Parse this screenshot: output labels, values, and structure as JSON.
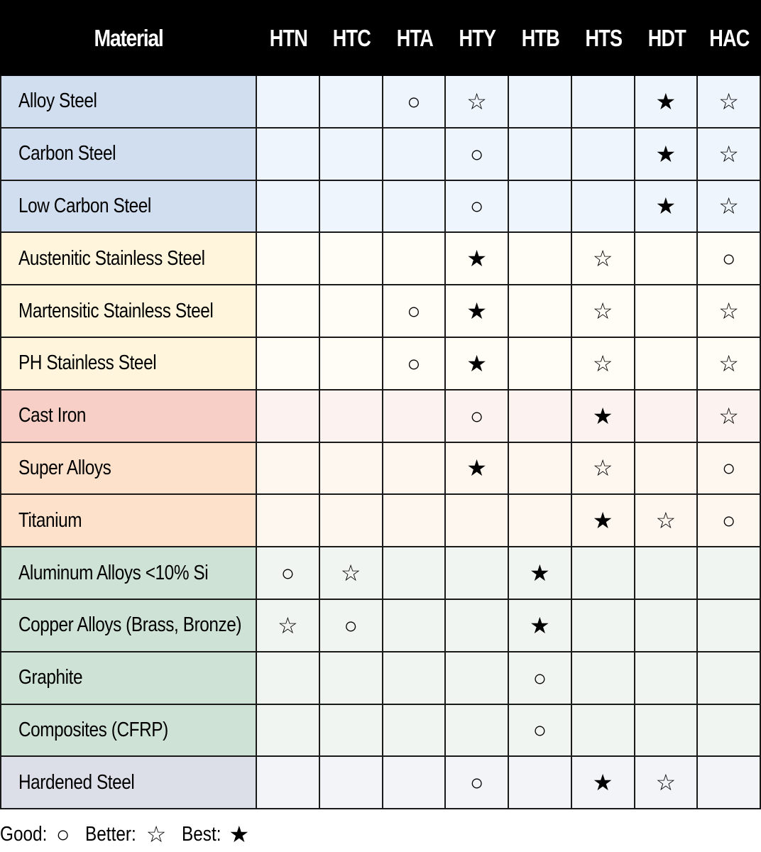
{
  "table": {
    "header": {
      "material": "Material",
      "columns": [
        "HTN",
        "HTC",
        "HTA",
        "HTY",
        "HTB",
        "HTS",
        "HDT",
        "HAC"
      ]
    },
    "symbols": {
      "good": "○",
      "better": "☆",
      "best": "★",
      "none": ""
    },
    "groups": {
      "carbon_steels": {
        "name_bg": "#d1deef",
        "cell_bg": "#eff5fd"
      },
      "stainless": {
        "name_bg": "#fff5dd",
        "cell_bg": "#fffdf6"
      },
      "cast_iron": {
        "name_bg": "#f7cfc6",
        "cell_bg": "#fcf2ef"
      },
      "heat_resistant": {
        "name_bg": "#fde1cb",
        "cell_bg": "#fef7f0"
      },
      "non_ferrous": {
        "name_bg": "#cfe2d6",
        "cell_bg": "#f0f5f1"
      },
      "hardened": {
        "name_bg": "#dcdfe7",
        "cell_bg": "#f3f4f8"
      }
    },
    "rows": [
      {
        "material": "Alloy Steel",
        "group": "carbon_steels",
        "cells": [
          "",
          "",
          "○",
          "☆",
          "",
          "",
          "★",
          "☆"
        ]
      },
      {
        "material": "Carbon Steel",
        "group": "carbon_steels",
        "cells": [
          "",
          "",
          "",
          "○",
          "",
          "",
          "★",
          "☆"
        ]
      },
      {
        "material": "Low Carbon Steel",
        "group": "carbon_steels",
        "cells": [
          "",
          "",
          "",
          "○",
          "",
          "",
          "★",
          "☆"
        ]
      },
      {
        "material": "Austenitic Stainless Steel",
        "group": "stainless",
        "cells": [
          "",
          "",
          "",
          "★",
          "",
          "☆",
          "",
          "○"
        ]
      },
      {
        "material": "Martensitic Stainless Steel",
        "group": "stainless",
        "cells": [
          "",
          "",
          "○",
          "★",
          "",
          "☆",
          "",
          "☆"
        ]
      },
      {
        "material": "PH Stainless Steel",
        "group": "stainless",
        "cells": [
          "",
          "",
          "○",
          "★",
          "",
          "☆",
          "",
          "☆"
        ]
      },
      {
        "material": "Cast Iron",
        "group": "cast_iron",
        "cells": [
          "",
          "",
          "",
          "○",
          "",
          "★",
          "",
          "☆"
        ]
      },
      {
        "material": "Super Alloys",
        "group": "heat_resistant",
        "cells": [
          "",
          "",
          "",
          "★",
          "",
          "☆",
          "",
          "○"
        ]
      },
      {
        "material": "Titanium",
        "group": "heat_resistant",
        "cells": [
          "",
          "",
          "",
          "",
          "",
          "★",
          "☆",
          "○"
        ]
      },
      {
        "material": "Aluminum Alloys <10% Si",
        "group": "non_ferrous",
        "cells": [
          "○",
          "☆",
          "",
          "",
          "★",
          "",
          "",
          ""
        ]
      },
      {
        "material": "Copper Alloys (Brass, Bronze)",
        "group": "non_ferrous",
        "cells": [
          "☆",
          "○",
          "",
          "",
          "★",
          "",
          "",
          ""
        ]
      },
      {
        "material": "Graphite",
        "group": "non_ferrous",
        "cells": [
          "",
          "",
          "",
          "",
          "○",
          "",
          "",
          ""
        ]
      },
      {
        "material": "Composites (CFRP)",
        "group": "non_ferrous",
        "cells": [
          "",
          "",
          "",
          "",
          "○",
          "",
          "",
          ""
        ]
      },
      {
        "material": "Hardened Steel",
        "group": "hardened",
        "cells": [
          "",
          "",
          "",
          "○",
          "",
          "★",
          "☆",
          ""
        ]
      }
    ]
  },
  "legend": {
    "items": [
      {
        "label": "Good:",
        "symbol": "○"
      },
      {
        "label": "Better:",
        "symbol": "☆"
      },
      {
        "label": "Best:",
        "symbol": "★"
      }
    ]
  }
}
